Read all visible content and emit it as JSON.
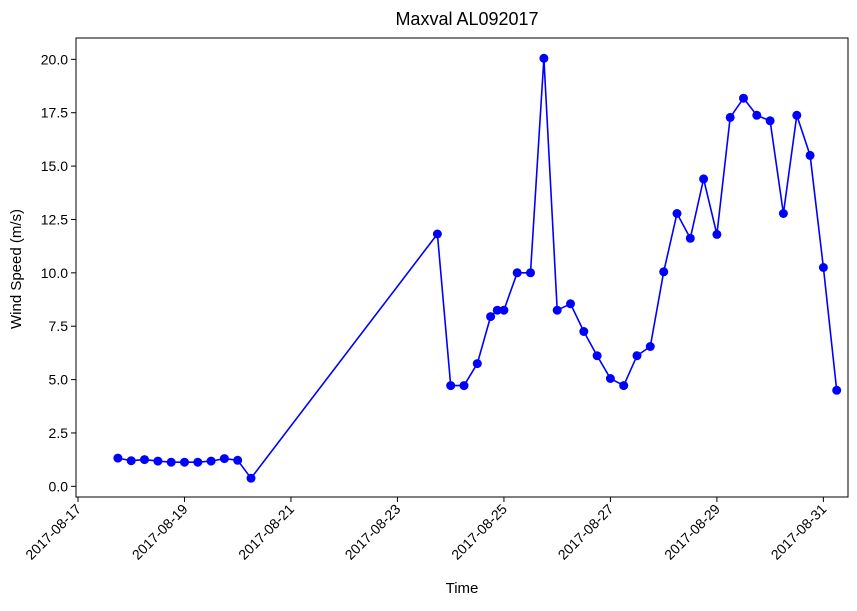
{
  "chart_data": {
    "type": "line",
    "title": "Maxval AL092017",
    "xlabel": "Time",
    "ylabel": "Wind Speed (m/s)",
    "xlim": [
      "2017-08-16T23:06",
      "2017-08-31T11:06"
    ],
    "ylim": [
      -0.5,
      21.0
    ],
    "x_ticks": [
      "2017-08-17",
      "2017-08-19",
      "2017-08-21",
      "2017-08-23",
      "2017-08-25",
      "2017-08-27",
      "2017-08-29",
      "2017-08-31"
    ],
    "y_ticks": [
      "0.0",
      "2.5",
      "5.0",
      "7.5",
      "10.0",
      "12.5",
      "15.0",
      "17.5",
      "20.0"
    ],
    "grid": false,
    "series": [
      {
        "color": "#0000ff",
        "marker": "circle",
        "x": [
          "2017-08-17T18:00",
          "2017-08-18T00:00",
          "2017-08-18T06:00",
          "2017-08-18T12:00",
          "2017-08-18T18:00",
          "2017-08-19T00:00",
          "2017-08-19T06:00",
          "2017-08-19T12:00",
          "2017-08-19T18:00",
          "2017-08-20T00:00",
          "2017-08-20T06:00",
          "2017-08-23T18:00",
          "2017-08-24T00:00",
          "2017-08-24T06:00",
          "2017-08-24T12:00",
          "2017-08-24T18:00",
          "2017-08-24T21:00",
          "2017-08-25T00:00",
          "2017-08-25T06:00",
          "2017-08-25T12:00",
          "2017-08-25T18:00",
          "2017-08-26T00:00",
          "2017-08-26T06:00",
          "2017-08-26T12:00",
          "2017-08-26T18:00",
          "2017-08-27T00:00",
          "2017-08-27T06:00",
          "2017-08-27T12:00",
          "2017-08-27T18:00",
          "2017-08-28T00:00",
          "2017-08-28T06:00",
          "2017-08-28T12:00",
          "2017-08-28T18:00",
          "2017-08-29T00:00",
          "2017-08-29T06:00",
          "2017-08-29T12:00",
          "2017-08-29T18:00",
          "2017-08-30T00:00",
          "2017-08-30T06:00",
          "2017-08-30T12:00",
          "2017-08-30T18:00",
          "2017-08-31T00:00",
          "2017-08-31T06:00"
        ],
        "y": [
          1.32,
          1.2,
          1.25,
          1.18,
          1.13,
          1.13,
          1.13,
          1.18,
          1.3,
          1.22,
          0.38,
          11.82,
          4.72,
          4.72,
          5.75,
          7.95,
          8.25,
          8.25,
          10.0,
          10.0,
          20.05,
          8.25,
          8.55,
          7.25,
          6.12,
          5.05,
          4.72,
          6.12,
          6.55,
          10.05,
          12.78,
          11.62,
          14.4,
          11.8,
          17.28,
          18.18,
          17.38,
          17.12,
          12.78,
          17.38,
          15.5,
          10.25,
          4.5
        ]
      }
    ]
  }
}
